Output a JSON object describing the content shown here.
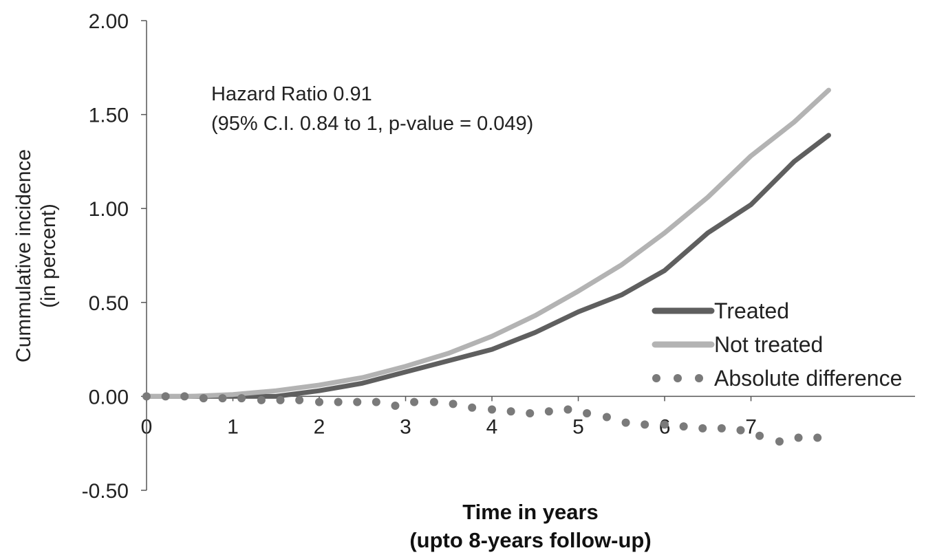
{
  "chart_data": {
    "type": "line",
    "ylabel_lines": [
      "Cummulative  incidence",
      "(in percent)"
    ],
    "xlabel_lines": [
      "Time in years",
      "(upto 8-years follow-up)"
    ],
    "annotation_lines": [
      "Hazard Ratio 0.91",
      "(95% C.I. 0.84 to 1, p-value  = 0.049)"
    ],
    "xlim": [
      0,
      8.9
    ],
    "ylim": [
      -0.5,
      2.0
    ],
    "x_ticks": [
      "0",
      "1",
      "2",
      "3",
      "4",
      "5",
      "6",
      "7"
    ],
    "y_ticks": [
      "2.00",
      "1.50",
      "1.00",
      "0.50",
      "0.00",
      "-0.50"
    ],
    "grid": false,
    "legend_position": "lower-right",
    "series": [
      {
        "name": "Treated",
        "style": "line",
        "color": "#5f5f5f",
        "x": [
          0,
          0.5,
          1.0,
          1.5,
          2.0,
          2.5,
          3.0,
          3.5,
          4.0,
          4.5,
          5.0,
          5.5,
          6.0,
          6.5,
          7.0,
          7.5,
          7.9
        ],
        "y": [
          0.0,
          0.0,
          0.0,
          0.0,
          0.03,
          0.07,
          0.13,
          0.19,
          0.25,
          0.34,
          0.45,
          0.54,
          0.67,
          0.87,
          1.02,
          1.25,
          1.39
        ]
      },
      {
        "name": "Not treated",
        "style": "line",
        "color": "#b3b3b3",
        "x": [
          0,
          0.5,
          1.0,
          1.5,
          2.0,
          2.5,
          3.0,
          3.5,
          4.0,
          4.5,
          5.0,
          5.5,
          6.0,
          6.5,
          7.0,
          7.5,
          7.9
        ],
        "y": [
          0.0,
          0.0,
          0.01,
          0.03,
          0.06,
          0.1,
          0.16,
          0.23,
          0.32,
          0.43,
          0.56,
          0.7,
          0.87,
          1.06,
          1.28,
          1.46,
          1.63
        ]
      },
      {
        "name": "Absolute difference",
        "style": "dots",
        "color": "#7a7a7a",
        "x": [
          0.0,
          0.22,
          0.44,
          0.66,
          0.88,
          1.1,
          1.33,
          1.55,
          1.77,
          2.0,
          2.22,
          2.44,
          2.66,
          2.88,
          3.1,
          3.33,
          3.55,
          3.77,
          4.0,
          4.22,
          4.44,
          4.66,
          4.88,
          5.1,
          5.33,
          5.55,
          5.77,
          6.0,
          6.22,
          6.44,
          6.66,
          6.88,
          7.1,
          7.33,
          7.55,
          7.77
        ],
        "y": [
          0.0,
          0.0,
          0.0,
          -0.01,
          -0.01,
          -0.01,
          -0.02,
          -0.02,
          -0.02,
          -0.03,
          -0.03,
          -0.03,
          -0.03,
          -0.05,
          -0.03,
          -0.03,
          -0.04,
          -0.06,
          -0.07,
          -0.08,
          -0.09,
          -0.08,
          -0.07,
          -0.09,
          -0.11,
          -0.14,
          -0.15,
          -0.15,
          -0.16,
          -0.17,
          -0.17,
          -0.18,
          -0.21,
          -0.24,
          -0.22,
          -0.22
        ]
      }
    ]
  }
}
